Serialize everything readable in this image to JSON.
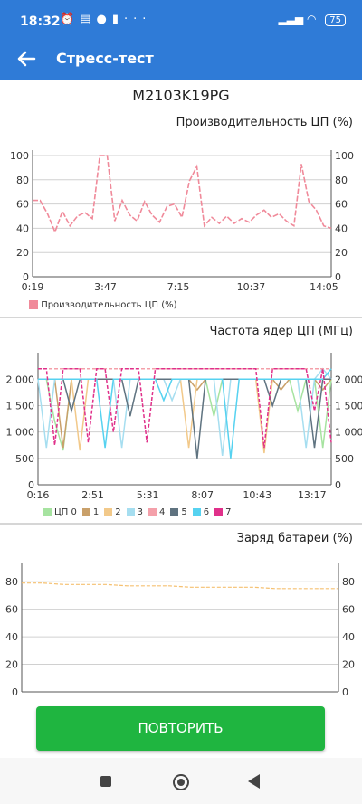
{
  "statusbar": {
    "time": "18:32",
    "more": "···",
    "battery": "75"
  },
  "appbar": {
    "title": "Стресс-тест"
  },
  "device": "M2103K19PG",
  "chart_data": [
    {
      "type": "line",
      "title": "Производительность ЦП (%)",
      "ylim": [
        0,
        100
      ],
      "yticks": [
        "0",
        "20",
        "40",
        "60",
        "80",
        "100"
      ],
      "xticks": [
        "0:19",
        "3:47",
        "7:15",
        "10:37",
        "14:05"
      ],
      "legend": "bottom-left",
      "grid": true,
      "series": [
        {
          "name": "Производительность ЦП (%)",
          "color": "#f08a9a",
          "values": [
            63,
            63,
            52,
            37,
            54,
            42,
            50,
            53,
            48,
            100,
            100,
            46,
            63,
            51,
            46,
            62,
            51,
            45,
            58,
            60,
            49,
            79,
            91,
            42,
            49,
            44,
            50,
            44,
            48,
            45,
            51,
            55,
            49,
            52,
            46,
            42,
            93,
            62,
            55,
            42,
            40
          ]
        }
      ]
    },
    {
      "type": "line",
      "title": "Частота ядер ЦП (МГц)",
      "ylim": [
        0,
        2400
      ],
      "yticks": [
        "0",
        "500",
        "1 000",
        "1 500",
        "2 000"
      ],
      "xticks": [
        "0:16",
        "2:51",
        "5:31",
        "8:07",
        "10:43",
        "13:17"
      ],
      "legend": "bottom",
      "grid": true,
      "series": [
        {
          "name": "ЦП 0",
          "color": "#a6e3a0",
          "values": [
            2000,
            2000,
            1200,
            650,
            2000,
            2000,
            2000,
            2000,
            2000,
            2000,
            2000,
            2000,
            2000,
            2000,
            2000,
            2000,
            2000,
            2000,
            2000,
            2000,
            2000,
            1300,
            2000,
            2000,
            2000,
            2000,
            2000,
            2000,
            2000,
            2000,
            2000,
            1400,
            2000,
            2000,
            700,
            2000
          ]
        },
        {
          "name": "1",
          "color": "#c9a06a",
          "values": [
            2000,
            2000,
            2000,
            700,
            2000,
            2000,
            2000,
            2000,
            2000,
            2000,
            2000,
            2000,
            2000,
            2000,
            2000,
            2000,
            2000,
            2000,
            2000,
            1800,
            2000,
            2000,
            2000,
            2000,
            2000,
            2000,
            2000,
            2000,
            2000,
            1800,
            2000,
            2000,
            2000,
            2000,
            1800,
            2000
          ]
        },
        {
          "name": "2",
          "color": "#f2c98a",
          "values": [
            2000,
            2000,
            2000,
            2000,
            2000,
            650,
            2000,
            2000,
            2000,
            2000,
            2000,
            2000,
            2000,
            2000,
            2000,
            2000,
            2000,
            2000,
            700,
            2000,
            2000,
            2000,
            2000,
            2000,
            2000,
            2000,
            2000,
            600,
            2000,
            2000,
            2000,
            2000,
            2000,
            2000,
            2000,
            2000
          ]
        },
        {
          "name": "3",
          "color": "#a6def0",
          "values": [
            2000,
            700,
            2000,
            2000,
            2000,
            2000,
            2000,
            2000,
            2000,
            2000,
            700,
            2000,
            2000,
            2000,
            2000,
            2000,
            1600,
            2000,
            2000,
            2000,
            2000,
            2000,
            550,
            2000,
            2000,
            2000,
            2000,
            2000,
            2000,
            2000,
            2000,
            2000,
            700,
            2000,
            2200,
            2000
          ]
        },
        {
          "name": "4",
          "color": "#f4a0aa",
          "values": [
            2200,
            2200,
            2200,
            2200,
            2200,
            2200,
            2200,
            2200,
            2200,
            2200,
            2200,
            2200,
            2200,
            2200,
            2200,
            2200,
            2200,
            2200,
            2200,
            2200,
            2200,
            2200,
            2200,
            2200,
            2200,
            2200,
            2200,
            2200,
            2200,
            2200,
            2200,
            2200,
            2200,
            2200,
            2200,
            2200
          ]
        },
        {
          "name": "5",
          "color": "#5f7380",
          "values": [
            2000,
            2000,
            2000,
            2000,
            1400,
            2000,
            2000,
            2000,
            2000,
            2000,
            2000,
            1300,
            2000,
            2000,
            2000,
            2000,
            2000,
            2000,
            2000,
            500,
            2000,
            2000,
            2000,
            2000,
            2000,
            2000,
            2000,
            2000,
            1500,
            2000,
            2000,
            2000,
            2000,
            700,
            2000,
            2000
          ]
        },
        {
          "name": "6",
          "color": "#56d2f0",
          "values": [
            2000,
            2000,
            2000,
            2000,
            2000,
            2000,
            2000,
            2000,
            700,
            2000,
            2000,
            2000,
            2000,
            2000,
            2000,
            1600,
            2000,
            2000,
            2000,
            2000,
            2000,
            2000,
            2000,
            500,
            2000,
            2000,
            2000,
            2000,
            2000,
            2000,
            2000,
            2000,
            2000,
            2000,
            2000,
            2200
          ]
        },
        {
          "name": "7",
          "color": "#e0308a",
          "values": [
            2200,
            2200,
            750,
            2200,
            2200,
            2200,
            800,
            2200,
            2200,
            1000,
            2200,
            2200,
            2200,
            800,
            2200,
            2200,
            2200,
            2200,
            2200,
            2200,
            2200,
            2200,
            2200,
            2200,
            2200,
            2200,
            2200,
            700,
            2200,
            2200,
            2200,
            2200,
            2200,
            1400,
            2200,
            800
          ]
        }
      ]
    },
    {
      "type": "line",
      "title": "Заряд батареи (%)",
      "ylim": [
        0,
        90
      ],
      "yticks": [
        "0",
        "20",
        "40",
        "60",
        "80"
      ],
      "xticks": [],
      "grid": true,
      "series": [
        {
          "name": "Заряд батареи (%)",
          "color": "#f5c070",
          "values": [
            79,
            79,
            78,
            78,
            78,
            77,
            77,
            77,
            76,
            76,
            76,
            76,
            75,
            75,
            75,
            75
          ]
        }
      ]
    }
  ],
  "button": {
    "label": "ПОВТОРИТЬ"
  }
}
